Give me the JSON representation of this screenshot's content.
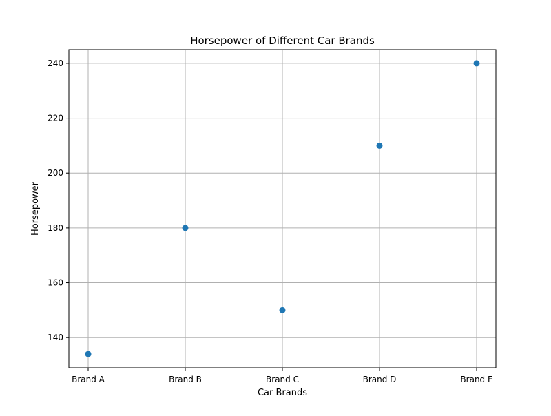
{
  "chart_data": {
    "type": "scatter",
    "title": "Horsepower of Different Car Brands",
    "xlabel": "Car Brands",
    "ylabel": "Horsepower",
    "categories": [
      "Brand A",
      "Brand B",
      "Brand C",
      "Brand D",
      "Brand E"
    ],
    "values": [
      134,
      180,
      150,
      210,
      240
    ],
    "ylim": [
      129,
      245
    ],
    "yticks": [
      140,
      160,
      180,
      200,
      220,
      240
    ],
    "grid": true,
    "marker_color": "#1f77b4",
    "grid_color": "#b0b0b0"
  }
}
